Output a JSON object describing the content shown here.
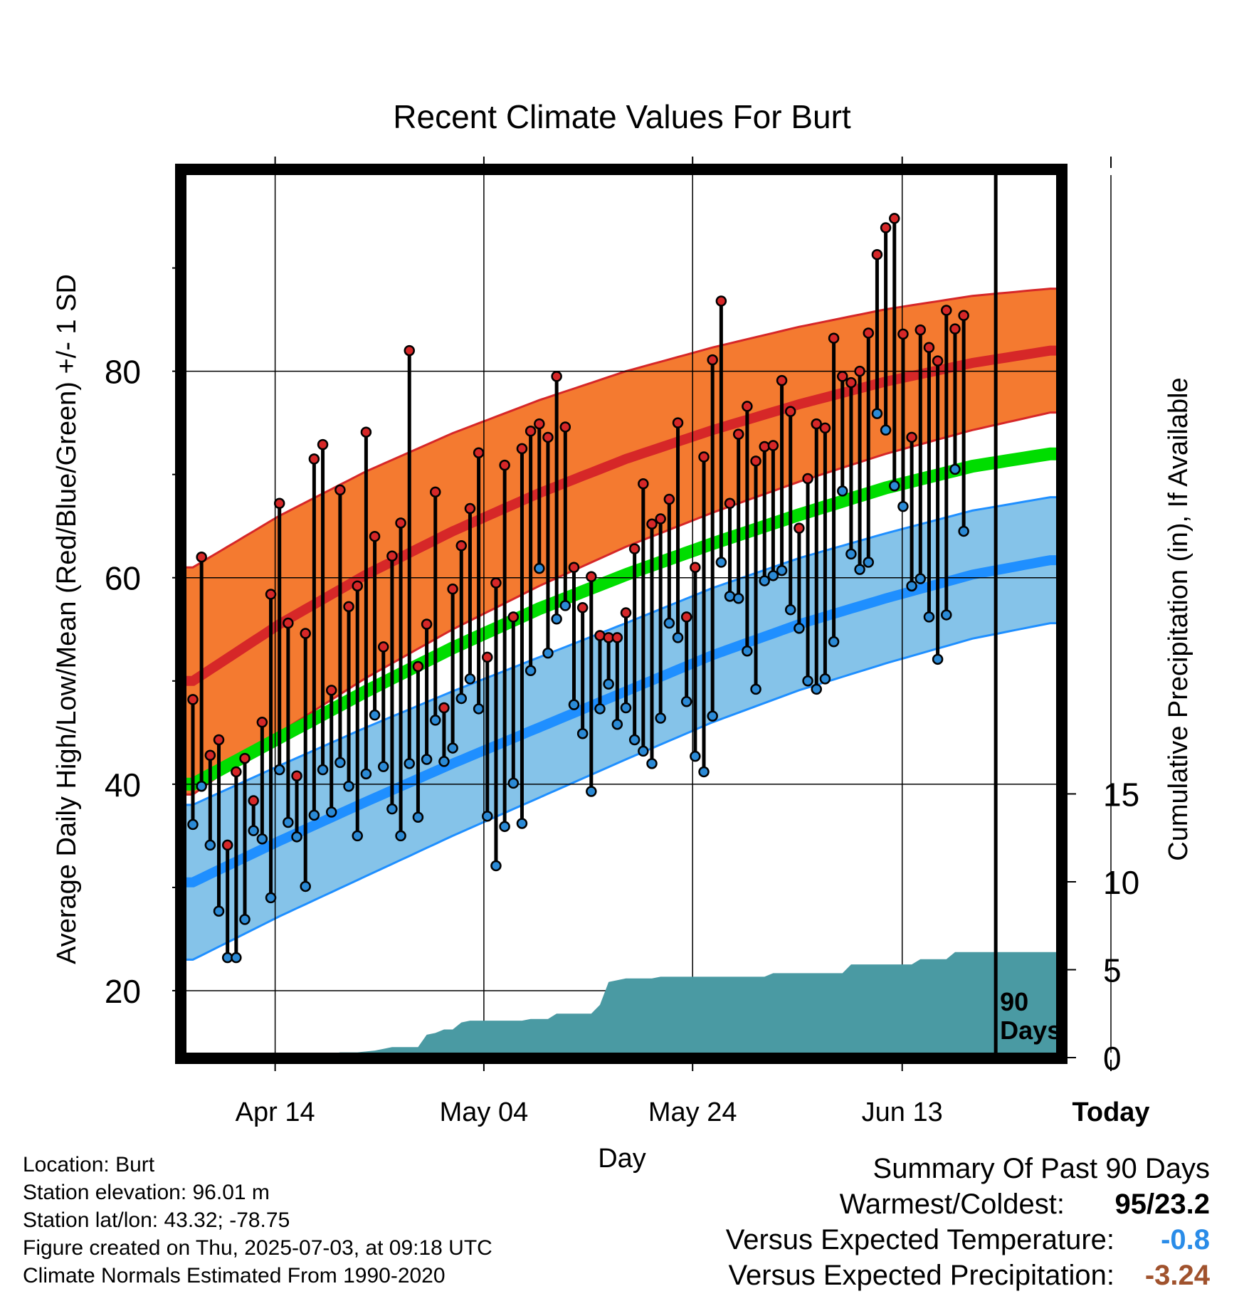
{
  "chart_data": {
    "type": "line",
    "title": "Recent Climate Values For Burt",
    "xlabel": "Day",
    "ylabel": "Average Daily High/Low/Mean (Red/Blue/Green) +/- 1 SD",
    "ylabel_right": "Cumulative Precipitation (in), If Available",
    "x_tick_labels": [
      "Apr 14",
      "May 04",
      "May 24",
      "Jun 13",
      "Today"
    ],
    "y_ticks": [
      20,
      40,
      60,
      80
    ],
    "y_right_ticks": [
      0,
      5,
      10,
      15
    ],
    "ylim": [
      14,
      99
    ],
    "annotation": "90 Days",
    "grid": true,
    "colors": {
      "high": "#d62728",
      "high_band": "#f47a30",
      "low": "#1f8fff",
      "low_band": "#85c3e9",
      "mean": "#00dd00",
      "precip": "#4a9aa3",
      "max_dot": "#d62728",
      "min_dot": "#2b8ad6",
      "neg_temp": "#2a8ce8",
      "neg_precip": "#a0522d"
    },
    "normals": {
      "day_index": [
        0,
        10,
        20,
        30,
        40,
        50,
        60,
        70,
        80,
        90,
        99
      ],
      "high_mean": [
        50,
        55.5,
        60.3,
        64.5,
        68.2,
        71.5,
        74.3,
        76.8,
        79,
        80.8,
        82
      ],
      "high_sd": [
        11,
        10.5,
        10,
        9.5,
        9,
        8.5,
        8,
        7.5,
        7,
        6.5,
        6
      ],
      "low_mean": [
        30.5,
        34.5,
        38.3,
        42,
        45.5,
        49,
        52.5,
        55.5,
        58,
        60.3,
        61.7
      ],
      "low_sd": [
        7.5,
        7.3,
        7.2,
        7,
        6.8,
        6.6,
        6.5,
        6.4,
        6.3,
        6.2,
        6.1
      ],
      "mean_mean": [
        40,
        44.5,
        49,
        53.2,
        57,
        60.3,
        63.3,
        66.1,
        68.7,
        70.8,
        72
      ]
    },
    "series": [
      {
        "name": "Daily High",
        "values": [
          48.2,
          62,
          42.8,
          44.3,
          34.1,
          41.2,
          42.5,
          38.4,
          46,
          58.4,
          67.2,
          55.6,
          40.8,
          54.6,
          71.5,
          72.9,
          49.1,
          68.5,
          57.2,
          59.2,
          74.1,
          64,
          53.3,
          62.1,
          65.3,
          82,
          51.4,
          55.5,
          68.3,
          47.4,
          58.9,
          63.1,
          66.7,
          72.1,
          52.3,
          59.5,
          70.9,
          56.2,
          72.5,
          74.2,
          74.9,
          73.6,
          79.5,
          74.6,
          61,
          57.1,
          60.1,
          54.4,
          54.2,
          54.2,
          56.6,
          62.8,
          69.1,
          65.2,
          65.7,
          67.6,
          75,
          56.2,
          61,
          71.7,
          81.1,
          86.8,
          67.2,
          73.9,
          76.6,
          71.3,
          72.7,
          72.8,
          79.1,
          76.1,
          64.8,
          69.6,
          74.9,
          74.5,
          83.2,
          79.5,
          78.9,
          80,
          83.7,
          91.3,
          93.9,
          94.8,
          83.6,
          73.6,
          84,
          82.3,
          81,
          85.9,
          84.1,
          85.4
        ],
        "label_note": "red-dot tops"
      },
      {
        "name": "Daily Low",
        "values": [
          36.1,
          39.8,
          34.1,
          27.7,
          23.2,
          23.2,
          26.9,
          35.5,
          34.7,
          29,
          41.4,
          36.3,
          34.9,
          30.1,
          37,
          41.4,
          37.3,
          42.1,
          39.8,
          35,
          41,
          46.7,
          41.7,
          37.6,
          35,
          42,
          36.8,
          42.4,
          46.2,
          42.2,
          43.5,
          48.3,
          50.2,
          47.3,
          36.9,
          32.1,
          35.9,
          40.1,
          36.2,
          51,
          60.9,
          52.7,
          56,
          57.3,
          47.7,
          44.9,
          39.3,
          47.3,
          49.7,
          45.8,
          47.4,
          44.3,
          43.2,
          42,
          46.4,
          55.6,
          54.2,
          48,
          42.7,
          41.2,
          46.6,
          61.5,
          58.2,
          58,
          52.9,
          49.2,
          59.7,
          60.2,
          60.7,
          56.9,
          55.1,
          50,
          49.2,
          50.2,
          53.8,
          68.4,
          62.3,
          60.8,
          61.5,
          75.9,
          74.3,
          68.9,
          66.9,
          59.2,
          59.9,
          56.2,
          52.1,
          56.4,
          70.5,
          64.5
        ]
      },
      {
        "name": "Cumulative Precipitation",
        "values": [
          0,
          0,
          0,
          0,
          0,
          0,
          0,
          0,
          0,
          0,
          0,
          0,
          0,
          0,
          0.1,
          0.15,
          0.2,
          0.3,
          0.3,
          0.3,
          0.35,
          0.4,
          0.5,
          0.6,
          0.6,
          0.6,
          0.6,
          1.3,
          1.4,
          1.6,
          1.6,
          2,
          2.1,
          2.1,
          2.1,
          2.1,
          2.1,
          2.1,
          2.1,
          2.2,
          2.2,
          2.2,
          2.5,
          2.5,
          2.5,
          2.5,
          2.5,
          3,
          4.3,
          4.4,
          4.5,
          4.5,
          4.5,
          4.5,
          4.6,
          4.6,
          4.6,
          4.6,
          4.6,
          4.6,
          4.6,
          4.6,
          4.6,
          4.6,
          4.6,
          4.6,
          4.6,
          4.8,
          4.8,
          4.8,
          4.8,
          4.8,
          4.8,
          4.8,
          4.8,
          4.8,
          5.3,
          5.3,
          5.3,
          5.3,
          5.3,
          5.3,
          5.3,
          5.3,
          5.6,
          5.6,
          5.6,
          5.6,
          6,
          6,
          6,
          6,
          6,
          6,
          6,
          6,
          6,
          6,
          6
        ]
      }
    ]
  },
  "footer": {
    "location": "Location: Burt",
    "elevation": "Station elevation: 96.01 m",
    "latlon": "Station lat/lon: 43.32; -78.75",
    "created": "Figure created on Thu, 2025-07-03, at 09:18 UTC",
    "normals": "Climate Normals Estimated From 1990-2020"
  },
  "summary": {
    "title": "Summary Of Past 90 Days",
    "warmest_label": "Warmest/Coldest:",
    "warmest_value": "95/23.2",
    "temp_label": "Versus Expected Temperature:",
    "temp_value": "-0.8",
    "precip_label": "Versus Expected Precipitation:",
    "precip_value": "-3.24"
  }
}
